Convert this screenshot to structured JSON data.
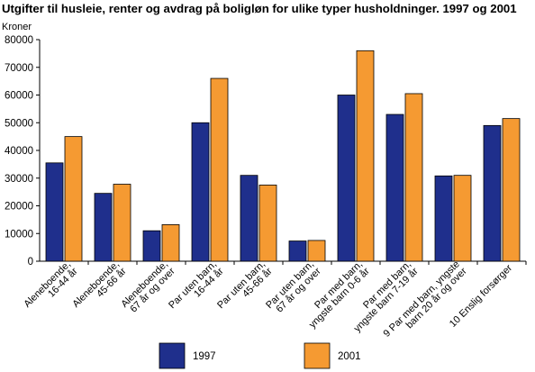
{
  "chart_data": {
    "type": "bar",
    "title": "Utgifter til husleie, renter og avdrag på boligløn for ulike typer husholdninger.  1997 og 2001",
    "ylabel": "Kroner",
    "xlabel": "",
    "ylim": [
      0,
      80000
    ],
    "yticks": [
      0,
      10000,
      20000,
      30000,
      40000,
      50000,
      60000,
      70000,
      80000
    ],
    "grid": false,
    "legend_position": "bottom",
    "categories": [
      [
        "Aleneboende,",
        "16-44 år"
      ],
      [
        "Aleneboende,",
        "45-66 år"
      ],
      [
        "Aleneboende,",
        "67 år og over"
      ],
      [
        "Par uten barn,",
        "16-44 år"
      ],
      [
        "Par uten barn,",
        "45-66 år"
      ],
      [
        "Par uten barn,",
        "67 år og over"
      ],
      [
        "Par med barn,",
        "yngste barn 0-6 år"
      ],
      [
        "Par med barn,",
        "yngste barn 7-19 år"
      ],
      [
        "9 Par med barn, yngste",
        "barn 20 år og over"
      ],
      [
        "10 Enslig forsørger"
      ]
    ],
    "series": [
      {
        "name": "1997",
        "color": "#1f2f8c",
        "values": [
          35500,
          24500,
          11000,
          50000,
          31000,
          7300,
          60000,
          53000,
          30800,
          49000
        ]
      },
      {
        "name": "2001",
        "color": "#f59a32",
        "values": [
          45000,
          27800,
          13200,
          66000,
          27500,
          7500,
          76000,
          60500,
          31000,
          51500
        ]
      }
    ]
  }
}
